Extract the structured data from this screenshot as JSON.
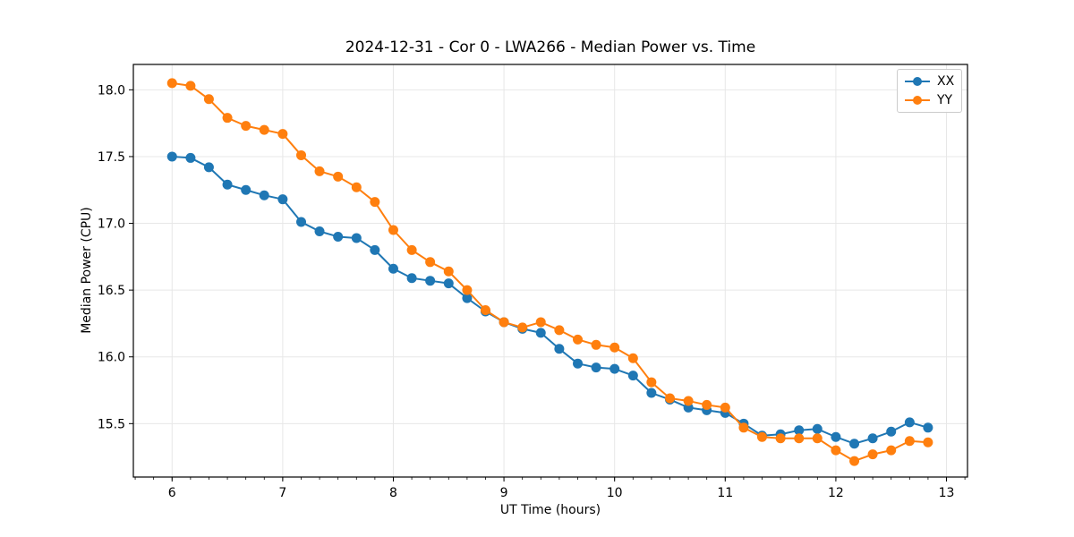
{
  "chart_data": {
    "type": "line",
    "title": "2024-12-31 - Cor 0 - LWA266 - Median Power vs. Time",
    "xlabel": "UT Time (hours)",
    "ylabel": "Median Power (CPU)",
    "xlim": [
      5.65,
      13.19
    ],
    "ylim": [
      15.1,
      18.19
    ],
    "xticks": [
      6,
      7,
      8,
      9,
      10,
      11,
      12,
      13
    ],
    "xtick_labels": [
      "6",
      "7",
      "8",
      "9",
      "10",
      "11",
      "12",
      "13"
    ],
    "yticks": [
      15.5,
      16.0,
      16.5,
      17.0,
      17.5,
      18.0
    ],
    "ytick_labels": [
      "15.5",
      "16.0",
      "16.5",
      "17.0",
      "17.5",
      "18.0"
    ],
    "x_minor_tick_step": 0.166667,
    "grid": true,
    "grid_color": "#e7e7e7",
    "legend_position": "upper right",
    "x": [
      6.0,
      6.167,
      6.333,
      6.5,
      6.667,
      6.833,
      7.0,
      7.167,
      7.333,
      7.5,
      7.667,
      7.833,
      8.0,
      8.167,
      8.333,
      8.5,
      8.667,
      8.833,
      9.0,
      9.167,
      9.333,
      9.5,
      9.667,
      9.833,
      10.0,
      10.167,
      10.333,
      10.5,
      10.667,
      10.833,
      11.0,
      11.167,
      11.333,
      11.5,
      11.667,
      11.833,
      12.0,
      12.167,
      12.333,
      12.5,
      12.667,
      12.833
    ],
    "series": [
      {
        "name": "XX",
        "color": "#1f77b4",
        "values": [
          17.5,
          17.49,
          17.42,
          17.29,
          17.25,
          17.21,
          17.18,
          17.01,
          16.94,
          16.9,
          16.89,
          16.8,
          16.66,
          16.59,
          16.57,
          16.55,
          16.44,
          16.34,
          16.26,
          16.21,
          16.18,
          16.06,
          15.95,
          15.92,
          15.91,
          15.86,
          15.73,
          15.68,
          15.62,
          15.6,
          15.58,
          15.5,
          15.41,
          15.42,
          15.45,
          15.46,
          15.4,
          15.35,
          15.39,
          15.44,
          15.51,
          15.47
        ]
      },
      {
        "name": "YY",
        "color": "#ff7f0e",
        "values": [
          18.05,
          18.03,
          17.93,
          17.79,
          17.73,
          17.7,
          17.67,
          17.51,
          17.39,
          17.35,
          17.27,
          17.16,
          16.95,
          16.8,
          16.71,
          16.64,
          16.5,
          16.35,
          16.26,
          16.22,
          16.26,
          16.2,
          16.13,
          16.09,
          16.07,
          15.99,
          15.81,
          15.69,
          15.67,
          15.64,
          15.62,
          15.47,
          15.4,
          15.39,
          15.39,
          15.39,
          15.3,
          15.22,
          15.27,
          15.3,
          15.37,
          15.36
        ]
      }
    ]
  }
}
